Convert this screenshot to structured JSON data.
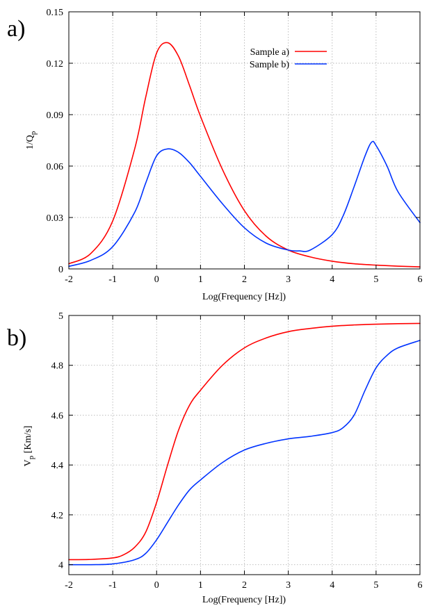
{
  "chart_data": [
    {
      "type": "line",
      "panel_label": "a)",
      "xlabel": "Log(Frequency [Hz])",
      "ylabel_main": "1/Q",
      "ylabel_sub": "p",
      "xlim": [
        -2,
        6
      ],
      "ylim": [
        0,
        0.15
      ],
      "grid": true,
      "legend_position": "top-right",
      "xticks": [
        "-2",
        "-1",
        "0",
        "1",
        "2",
        "3",
        "4",
        "5",
        "6"
      ],
      "yticks": [
        "0",
        "0.03",
        "0.06",
        "0.09",
        "0.12",
        "0.15"
      ],
      "series": [
        {
          "name": "Sample a)",
          "color": "#ff0000",
          "x": [
            -2,
            -1.5,
            -1,
            -0.5,
            -0.25,
            0,
            0.25,
            0.5,
            0.75,
            1,
            1.5,
            2,
            2.5,
            3,
            3.5,
            4,
            4.5,
            5,
            5.5,
            6
          ],
          "y": [
            0.003,
            0.009,
            0.028,
            0.07,
            0.1,
            0.126,
            0.132,
            0.124,
            0.107,
            0.089,
            0.058,
            0.034,
            0.019,
            0.011,
            0.007,
            0.0045,
            0.003,
            0.0022,
            0.0016,
            0.0012
          ]
        },
        {
          "name": "Sample b)",
          "color": "#0033ff",
          "x": [
            -2,
            -1.5,
            -1,
            -0.5,
            -0.25,
            0,
            0.25,
            0.5,
            0.75,
            1,
            1.5,
            2,
            2.5,
            3,
            3.25,
            3.5,
            4,
            4.25,
            4.5,
            4.75,
            4.9,
            5,
            5.25,
            5.5,
            6
          ],
          "y": [
            0.0015,
            0.005,
            0.013,
            0.033,
            0.05,
            0.066,
            0.07,
            0.068,
            0.062,
            0.054,
            0.038,
            0.024,
            0.015,
            0.011,
            0.0105,
            0.011,
            0.02,
            0.031,
            0.048,
            0.066,
            0.074,
            0.072,
            0.06,
            0.045,
            0.027
          ]
        }
      ]
    },
    {
      "type": "line",
      "panel_label": "b)",
      "xlabel": "Log(Frequency [Hz])",
      "ylabel_main": "V",
      "ylabel_sub": "p",
      "ylabel_tail": " [Km/s]",
      "xlim": [
        -2,
        6
      ],
      "ylim": [
        3.96,
        5
      ],
      "grid": true,
      "xticks": [
        "-2",
        "-1",
        "0",
        "1",
        "2",
        "3",
        "4",
        "5",
        "6"
      ],
      "yticks": [
        "4",
        "4.2",
        "4.4",
        "4.6",
        "4.8",
        "5"
      ],
      "series": [
        {
          "color": "#ff0000",
          "x": [
            -2,
            -1.5,
            -1,
            -0.75,
            -0.5,
            -0.25,
            0,
            0.25,
            0.5,
            0.75,
            1,
            1.5,
            2,
            2.5,
            3,
            3.5,
            4,
            4.5,
            5,
            5.5,
            6
          ],
          "y": [
            4.02,
            4.021,
            4.027,
            4.04,
            4.07,
            4.13,
            4.25,
            4.4,
            4.54,
            4.64,
            4.7,
            4.8,
            4.87,
            4.91,
            4.935,
            4.948,
            4.957,
            4.962,
            4.965,
            4.967,
            4.968
          ]
        },
        {
          "color": "#0033ff",
          "x": [
            -2,
            -1.5,
            -1,
            -0.5,
            -0.25,
            0,
            0.25,
            0.5,
            0.75,
            1,
            1.5,
            2,
            2.5,
            3,
            3.5,
            4,
            4.25,
            4.5,
            4.75,
            5,
            5.25,
            5.5,
            6
          ],
          "y": [
            4.0,
            4.0,
            4.003,
            4.02,
            4.045,
            4.1,
            4.17,
            4.24,
            4.3,
            4.34,
            4.41,
            4.46,
            4.487,
            4.505,
            4.515,
            4.53,
            4.55,
            4.6,
            4.7,
            4.79,
            4.84,
            4.87,
            4.9
          ]
        }
      ]
    }
  ]
}
